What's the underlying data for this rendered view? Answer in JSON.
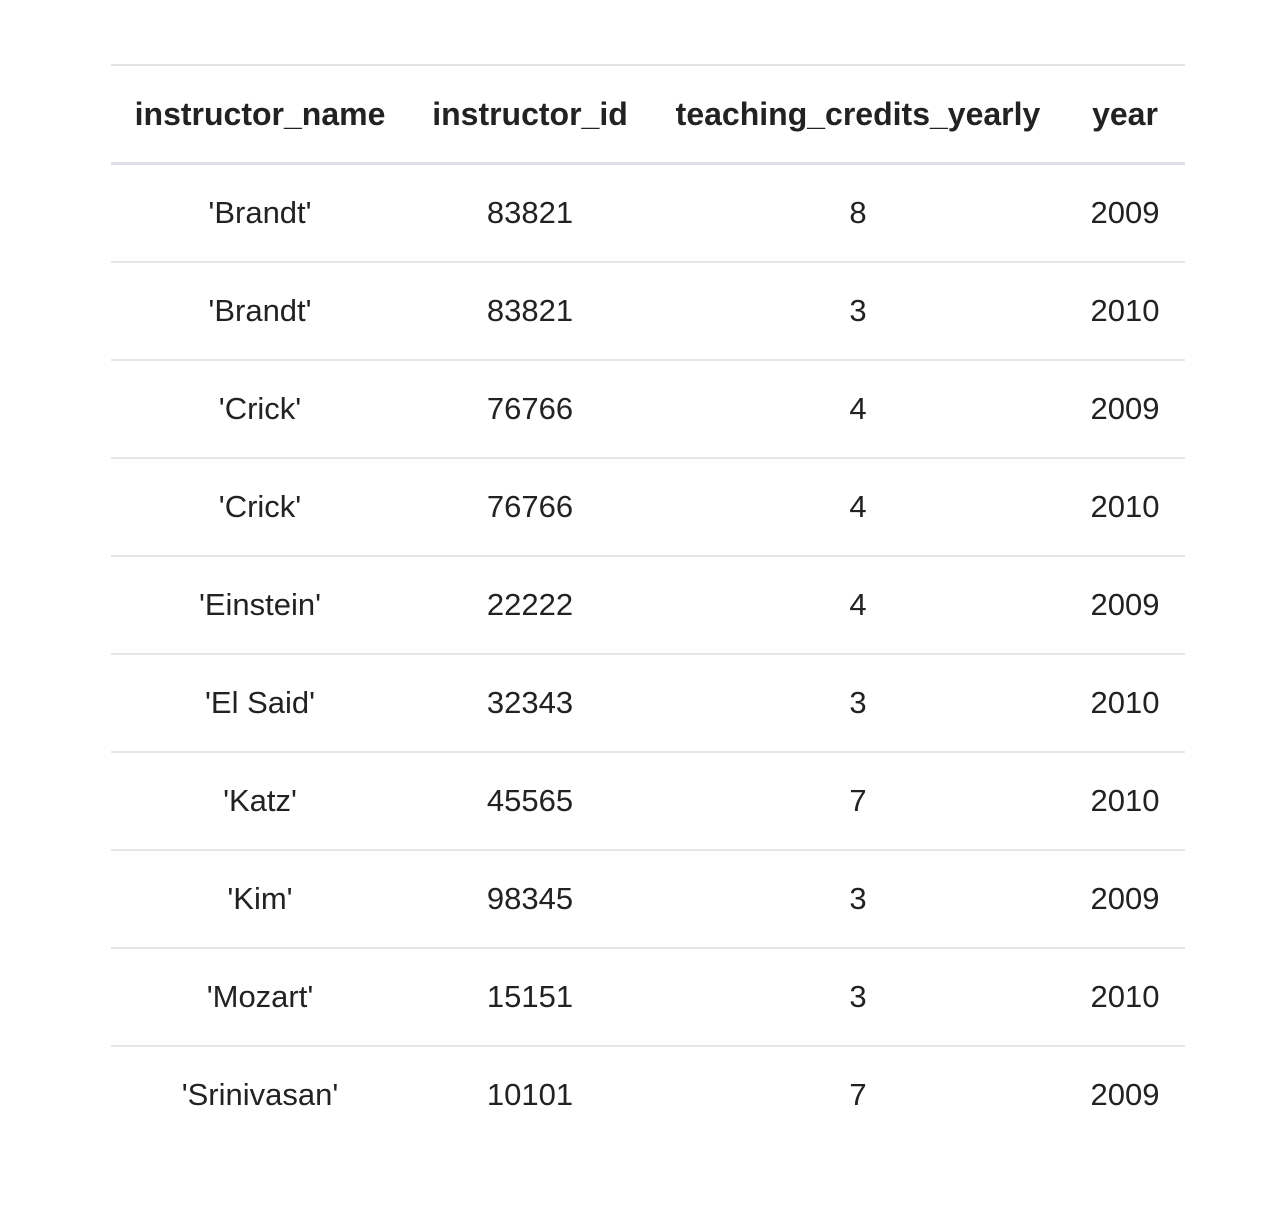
{
  "table": {
    "headers": [
      "instructor_name",
      "instructor_id",
      "teaching_credits_yearly",
      "year"
    ],
    "rows": [
      [
        "'Brandt'",
        "83821",
        "8",
        "2009"
      ],
      [
        "'Brandt'",
        "83821",
        "3",
        "2010"
      ],
      [
        "'Crick'",
        "76766",
        "4",
        "2009"
      ],
      [
        "'Crick'",
        "76766",
        "4",
        "2010"
      ],
      [
        "'Einstein'",
        "22222",
        "4",
        "2009"
      ],
      [
        "'El Said'",
        "32343",
        "3",
        "2010"
      ],
      [
        "'Katz'",
        "45565",
        "7",
        "2010"
      ],
      [
        "'Kim'",
        "98345",
        "3",
        "2009"
      ],
      [
        "'Mozart'",
        "15151",
        "3",
        "2010"
      ],
      [
        "'Srinivasan'",
        "10101",
        "7",
        "2009"
      ]
    ]
  }
}
